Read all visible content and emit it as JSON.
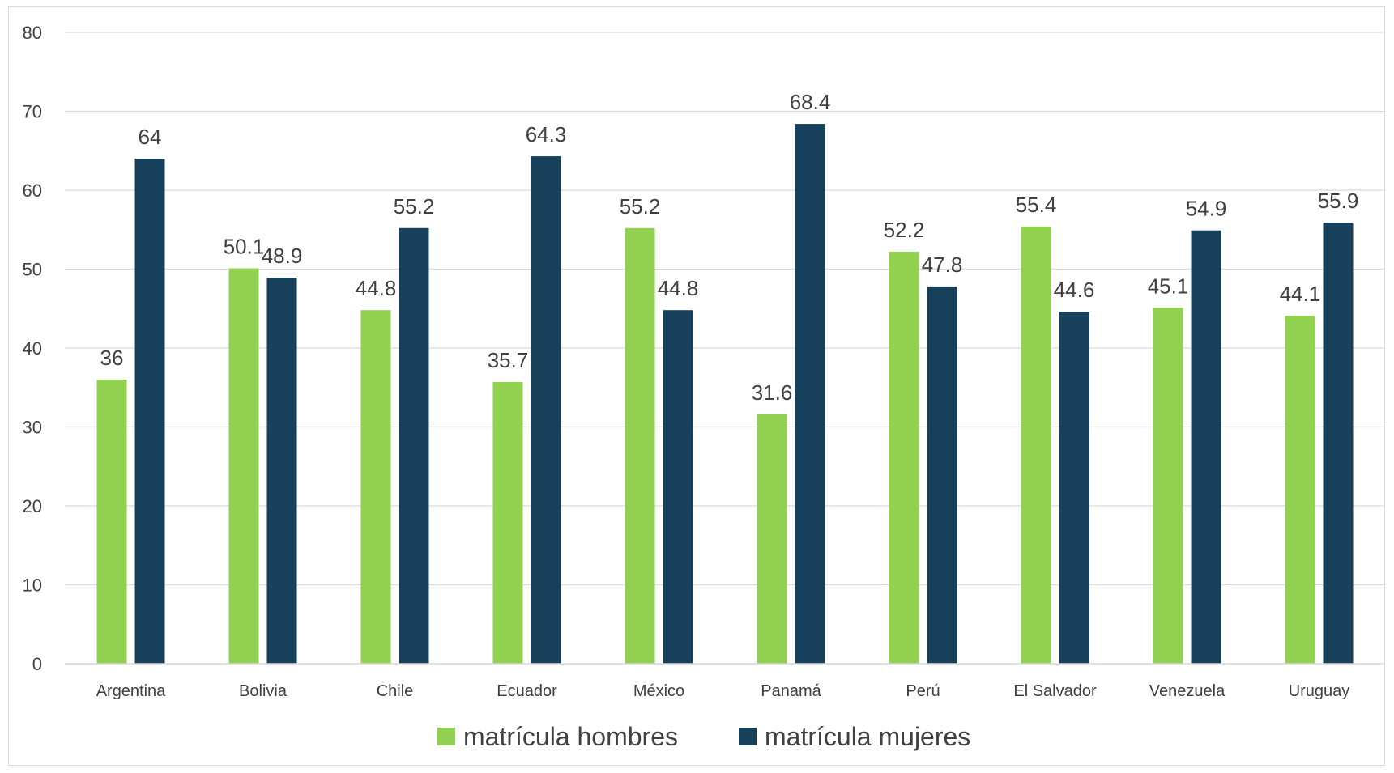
{
  "chart_data": {
    "type": "bar",
    "categories": [
      "Argentina",
      "Bolivia",
      "Chile",
      "Ecuador",
      "México",
      "Panamá",
      "Perú",
      "El Salvador",
      "Venezuela",
      "Uruguay"
    ],
    "series": [
      {
        "name": "matrícula hombres",
        "color": "#92d050",
        "values": [
          36,
          50.1,
          44.8,
          35.7,
          55.2,
          31.6,
          52.2,
          55.4,
          45.1,
          44.1
        ]
      },
      {
        "name": "matrícula mujeres",
        "color": "#17405b",
        "values": [
          64,
          48.9,
          55.2,
          64.3,
          44.8,
          68.4,
          47.8,
          44.6,
          54.9,
          55.9
        ]
      }
    ],
    "ylim": [
      0,
      80
    ],
    "yticks": [
      0,
      10,
      20,
      30,
      40,
      50,
      60,
      70,
      80
    ],
    "grid": true,
    "legend_position": "bottom",
    "data_labels": true
  }
}
